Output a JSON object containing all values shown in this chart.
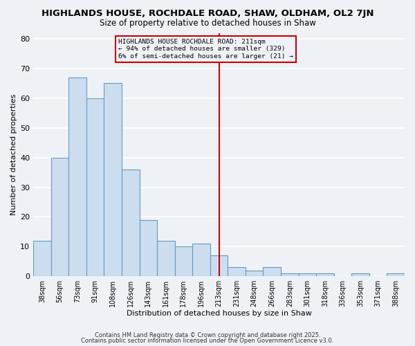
{
  "title": "HIGHLANDS HOUSE, ROCHDALE ROAD, SHAW, OLDHAM, OL2 7JN",
  "subtitle": "Size of property relative to detached houses in Shaw",
  "xlabel": "Distribution of detached houses by size in Shaw",
  "ylabel": "Number of detached properties",
  "bar_labels": [
    "38sqm",
    "56sqm",
    "73sqm",
    "91sqm",
    "108sqm",
    "126sqm",
    "143sqm",
    "161sqm",
    "178sqm",
    "196sqm",
    "213sqm",
    "231sqm",
    "248sqm",
    "266sqm",
    "283sqm",
    "301sqm",
    "318sqm",
    "336sqm",
    "353sqm",
    "371sqm",
    "388sqm"
  ],
  "bar_heights": [
    12,
    40,
    67,
    60,
    65,
    36,
    19,
    12,
    10,
    11,
    7,
    3,
    2,
    3,
    1,
    1,
    1,
    0,
    1,
    0,
    1
  ],
  "bar_color": "#ccddf0",
  "bar_edge_color": "#6699bb",
  "vline_x_index": 10,
  "vline_color": "#cc0000",
  "ylim": [
    0,
    82
  ],
  "yticks": [
    0,
    10,
    20,
    30,
    40,
    50,
    60,
    70,
    80
  ],
  "annotation_title": "HIGHLANDS HOUSE ROCHDALE ROAD: 211sqm",
  "annotation_line1": "← 94% of detached houses are smaller (329)",
  "annotation_line2": "6% of semi-detached houses are larger (21) →",
  "annotation_box_color": "#cc0000",
  "bg_color": "#eef2f7",
  "grid_color": "#ffffff",
  "footer1": "Contains HM Land Registry data © Crown copyright and database right 2025.",
  "footer2": "Contains public sector information licensed under the Open Government Licence v3.0."
}
